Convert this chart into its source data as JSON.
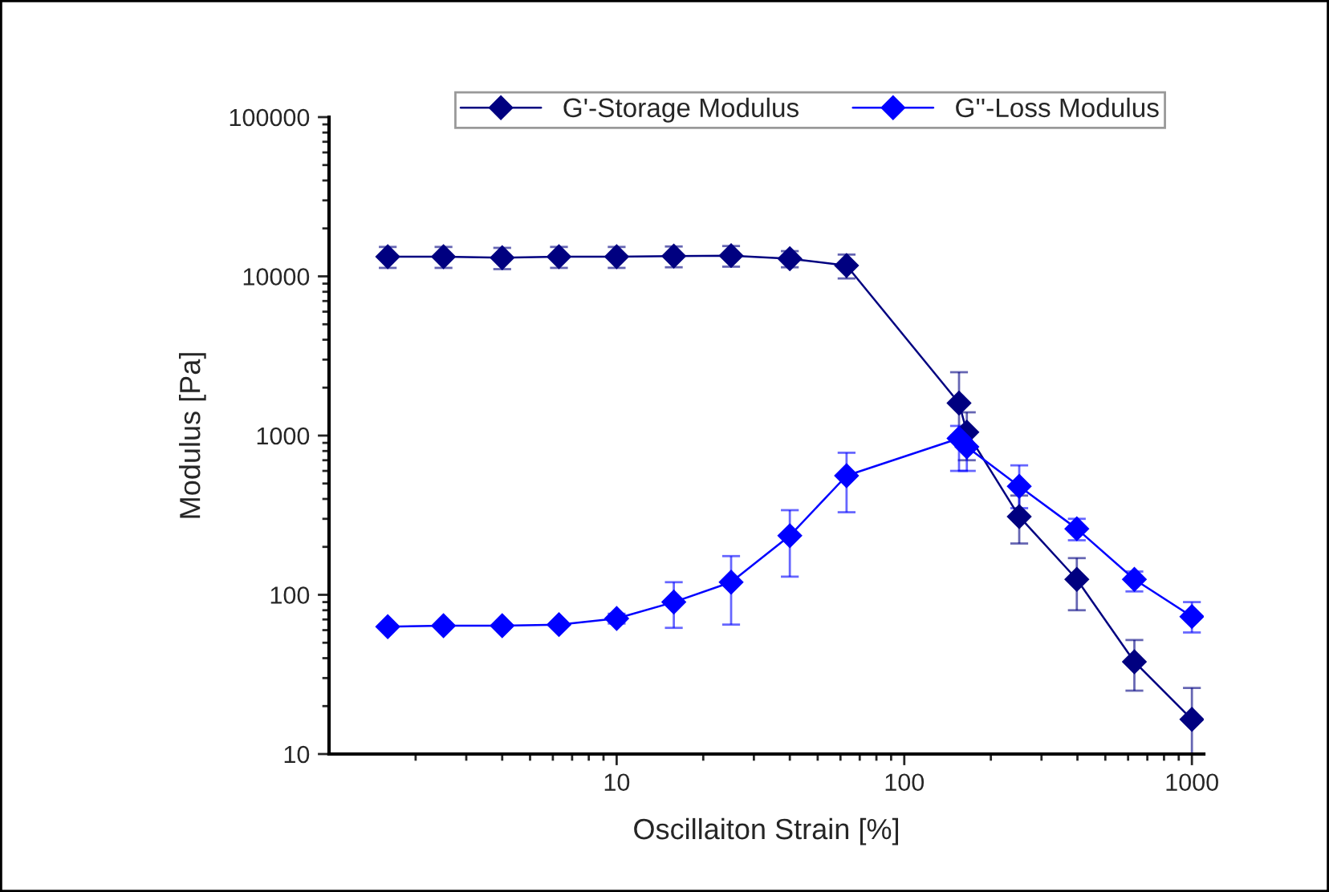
{
  "chart_data": {
    "type": "line",
    "xlabel": "Oscillaiton Strain [%]",
    "ylabel": "Modulus [Pa]",
    "log": "xy",
    "xlim": [
      1,
      1100
    ],
    "ylim": [
      10,
      100000
    ],
    "xticks": [
      10,
      100,
      1000
    ],
    "yticks": [
      10,
      100,
      1000,
      10000,
      100000
    ],
    "grid": false,
    "legend": "top",
    "marker": "diamond",
    "line_style": "solid",
    "series": [
      {
        "name": "G'-Storage Modulus",
        "color": "#000080",
        "x": [
          1.6,
          2.5,
          4,
          6.3,
          10,
          15.8,
          25,
          40,
          63,
          155,
          165,
          251,
          398,
          631,
          1000
        ],
        "values": [
          13300,
          13300,
          13100,
          13300,
          13300,
          13400,
          13500,
          12900,
          11700,
          1600,
          1050,
          310,
          125,
          38,
          16.5
        ],
        "errors": [
          [
            11300,
            15300
          ],
          [
            11300,
            15300
          ],
          [
            11100,
            15100
          ],
          [
            11300,
            15300
          ],
          [
            11300,
            15300
          ],
          [
            11400,
            15400
          ],
          [
            11500,
            15500
          ],
          [
            11400,
            14400
          ],
          [
            9700,
            13700
          ],
          [
            1000,
            2500
          ],
          [
            700,
            1400
          ],
          [
            210,
            420
          ],
          [
            80,
            170
          ],
          [
            25,
            52
          ],
          [
            10,
            26
          ]
        ]
      },
      {
        "name": "G''-Loss Modulus",
        "color": "#0000ff",
        "x": [
          1.6,
          2.5,
          4,
          6.3,
          10,
          15.8,
          25,
          40,
          63,
          155,
          165,
          251,
          398,
          631,
          1000
        ],
        "values": [
          63,
          64,
          64,
          65,
          71,
          90,
          120,
          235,
          560,
          960,
          850,
          480,
          260,
          125,
          73
        ],
        "errors": [
          null,
          null,
          null,
          null,
          [
            66,
            76
          ],
          [
            62,
            120
          ],
          [
            65,
            175
          ],
          [
            130,
            340
          ],
          [
            330,
            780
          ],
          [
            600,
            1150
          ],
          [
            600,
            1050
          ],
          [
            350,
            650
          ],
          [
            220,
            300
          ],
          [
            105,
            140
          ],
          [
            58,
            90
          ]
        ]
      }
    ]
  }
}
